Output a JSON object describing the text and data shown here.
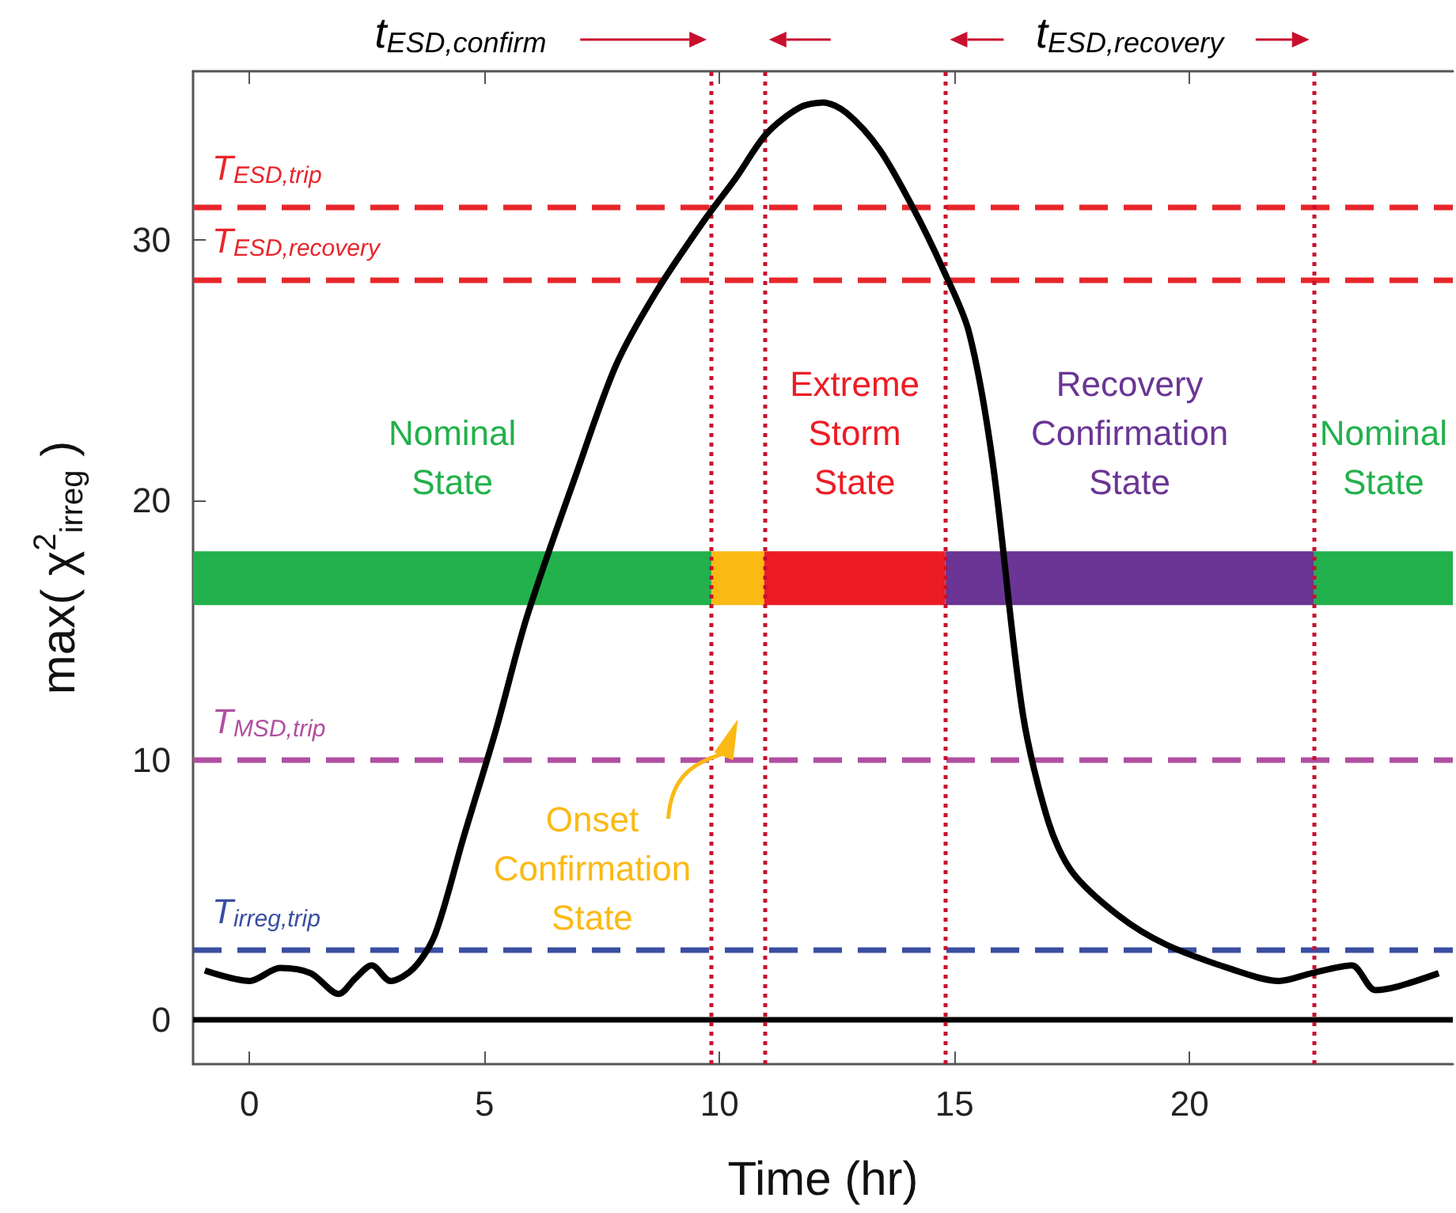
{
  "chart_data": {
    "type": "line",
    "xlabel": "Time (hr)",
    "ylabel": "max( χ$^{2}$$_{irreg}$ )",
    "xlim": [
      -1.2,
      25.6
    ],
    "ylim": [
      -1.7,
      36.5
    ],
    "xticks": [
      0,
      5,
      10,
      15,
      20
    ],
    "yticks": [
      0,
      10,
      20,
      30
    ],
    "grid": false,
    "marker": "none",
    "series": [
      {
        "name": "Nominal\nState",
        "color": "#22b14c",
        "x": [
          -1.2,
          9.83
        ],
        "values": [
          17,
          17
        ]
      },
      {
        "name": "Onset\nConfirmation\nState",
        "color": "#fbb914",
        "x": [
          9.83,
          10.95
        ],
        "values": [
          17,
          17
        ]
      },
      {
        "name": "Extreme\nStorm\nState",
        "color": "#ed1c24",
        "x": [
          10.95,
          14.8
        ],
        "values": [
          17,
          17
        ]
      },
      {
        "name": "Recovery\nConfirmation\nState",
        "color": "#6a3594",
        "x": [
          14.8,
          22.65
        ],
        "values": [
          17,
          17
        ]
      },
      {
        "name": "Nominal\nState",
        "color": "#22b14c",
        "x": [
          22.65,
          25.6
        ],
        "values": [
          17,
          17
        ]
      },
      {
        "color": "#000000",
        "x": [
          -0.95,
          0,
          0.65,
          1.3,
          1.9,
          2.25,
          2.6,
          3.0,
          3.5,
          3.95,
          4.55,
          5.25,
          5.9,
          6.95,
          7.8,
          8.65,
          9.65,
          10.35,
          11.0,
          11.7,
          12.2,
          12.7,
          13.4,
          14.1,
          14.75,
          15.3,
          15.8,
          16.45,
          17.0,
          17.5,
          18.5,
          19.5,
          20.9,
          21.9,
          22.6,
          23.45,
          23.95,
          24.45,
          25.3
        ],
        "values": [
          1.9,
          1.5,
          2.0,
          1.8,
          1.0,
          1.6,
          2.1,
          1.5,
          2.0,
          3.3,
          7.0,
          11.2,
          15.5,
          21,
          25.2,
          28,
          30.7,
          32.4,
          34.1,
          35.1,
          35.3,
          34.9,
          33.5,
          31.3,
          28.9,
          26.5,
          21.6,
          11.8,
          7.6,
          5.7,
          4.0,
          2.9,
          1.95,
          1.5,
          1.8,
          2.1,
          1.15,
          1.3,
          1.8
        ]
      }
    ],
    "ref_lines": [
      {
        "axis": "y",
        "value": 31.3,
        "label": "T$_{ESD,trip}$",
        "color": "#e8262b",
        "line_style": "dashed"
      },
      {
        "axis": "y",
        "value": 28.5,
        "label": "T$_{ESD,recovery}$",
        "color": "#e8262b",
        "line_style": "dashed"
      },
      {
        "axis": "y",
        "value": 10,
        "label": "T$_{MSD,trip}$",
        "color": "#b04fa0",
        "line_style": "dashed"
      },
      {
        "axis": "y",
        "value": 2.7,
        "label": "T$_{irreg,trip}$",
        "color": "#3a4ea1",
        "line_style": "dashed"
      },
      {
        "axis": "y",
        "value": 0,
        "color": "#000000",
        "line_style": "solid"
      },
      {
        "axis": "x",
        "value": 9.83,
        "color": "#c8102e",
        "line_style": "dotted"
      },
      {
        "axis": "x",
        "value": 10.95,
        "color": "#c8102e",
        "line_style": "dotted"
      },
      {
        "axis": "x",
        "value": 14.8,
        "color": "#c8102e",
        "line_style": "dotted"
      },
      {
        "axis": "x",
        "value": 22.65,
        "color": "#c8102e",
        "line_style": "dotted"
      }
    ],
    "annotations": [
      "t$_{ESD,confirm}$",
      "t$_{ESD,recovery}$"
    ]
  }
}
